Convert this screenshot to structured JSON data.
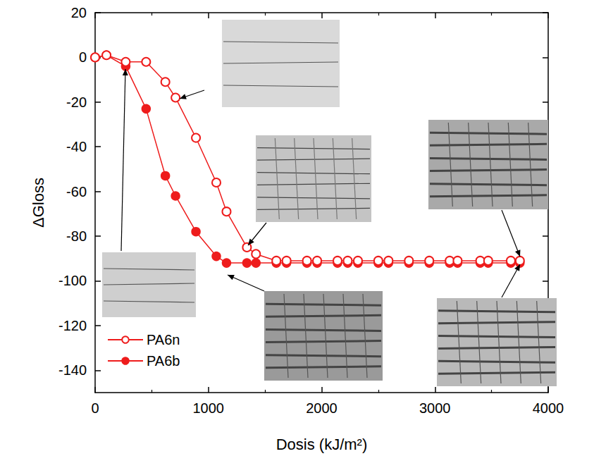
{
  "chart_data": {
    "type": "line",
    "x_label": "Dosis (kJ/m²)",
    "y_label": "ΔGloss",
    "x": [
      0,
      100,
      270,
      450,
      620,
      710,
      890,
      1070,
      1160,
      1340,
      1420,
      1600,
      1690,
      1870,
      1960,
      2140,
      2230,
      2320,
      2500,
      2590,
      2770,
      2950,
      3130,
      3200,
      3400,
      3470,
      3670,
      3750
    ],
    "series": [
      {
        "name": "PA6n",
        "color": "#ee1c1c",
        "marker": "open_circle",
        "values": [
          0,
          1,
          -2,
          -2,
          -11,
          -18,
          -36,
          -56,
          -69,
          -85,
          -88,
          -91,
          -91,
          -91,
          -91,
          -91,
          -91,
          -91,
          -91,
          -91,
          -91,
          -91,
          -91,
          -91,
          -91,
          -91,
          -91,
          -91
        ]
      },
      {
        "name": "PA6b",
        "color": "#ee1c1c",
        "marker": "circle",
        "values": [
          0,
          1,
          -4,
          -23,
          -53,
          -62,
          -78,
          -89,
          -92,
          -92,
          -92,
          -92,
          -92,
          -92,
          -92,
          -92,
          -92,
          -92,
          -92,
          -92,
          -92,
          -92,
          -92,
          -92,
          -92,
          -92,
          -92,
          -92
        ]
      }
    ],
    "xlim": [
      0,
      4000
    ],
    "xticks": [
      0,
      1000,
      2000,
      3000,
      4000
    ],
    "ylim": [
      -150,
      20
    ],
    "yticks": [
      -140,
      -120,
      -100,
      -80,
      -60,
      -40,
      -20,
      0,
      20
    ],
    "grid": false,
    "legend": "lower left"
  }
}
